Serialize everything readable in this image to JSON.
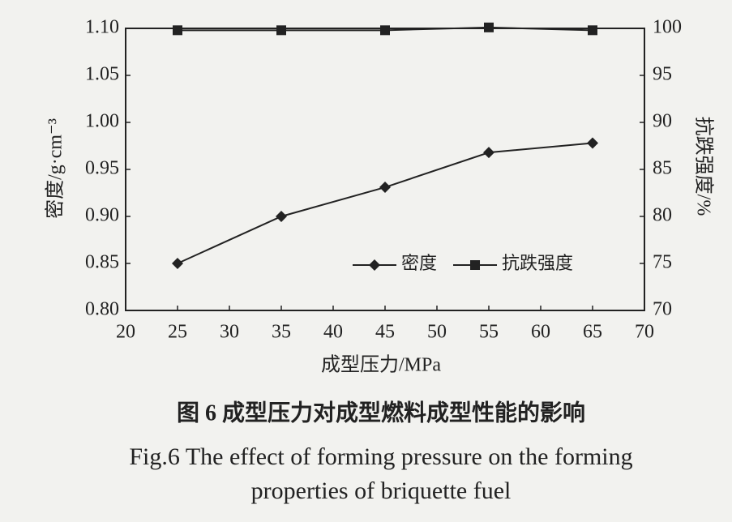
{
  "chart_data": {
    "type": "line",
    "x_label": "成型压力/MPa",
    "y_label": "密度/g·cm⁻³",
    "y2_label": "抗跌强度/%",
    "x": [
      25,
      35,
      45,
      55,
      65
    ],
    "series": [
      {
        "name": "密度",
        "color": "#222222",
        "marker": "diamond",
        "values": [
          0.85,
          0.9,
          0.931,
          0.968,
          0.978
        ]
      },
      {
        "name": "抗跌强度",
        "color": "#222222",
        "marker": "square",
        "axis": "y2",
        "values": [
          99.8,
          99.8,
          99.8,
          100.1,
          99.8
        ]
      }
    ],
    "xlim": [
      20,
      70
    ],
    "xticks": [
      20,
      25,
      30,
      35,
      40,
      45,
      50,
      55,
      60,
      65,
      70
    ],
    "ylim": [
      0.8,
      1.1
    ],
    "yticks": [
      {
        "value": 0.8,
        "label": "0.80"
      },
      0.85,
      {
        "value": 0.9,
        "label": "0.90"
      },
      0.95,
      {
        "value": 1.0,
        "label": "1.00"
      },
      1.05,
      {
        "value": 1.1,
        "label": "1.10"
      }
    ],
    "y2lim": [
      70,
      100
    ],
    "y2ticks": [
      70,
      75,
      80,
      85,
      90,
      95,
      100
    ],
    "grid": false,
    "legend": "lower right",
    "caption_cn": "图 6   成型压力对成型燃料成型性能的影响",
    "caption_en": [
      "Fig.6 The effect of forming pressure on the forming",
      "properties of briquette fuel"
    ]
  }
}
